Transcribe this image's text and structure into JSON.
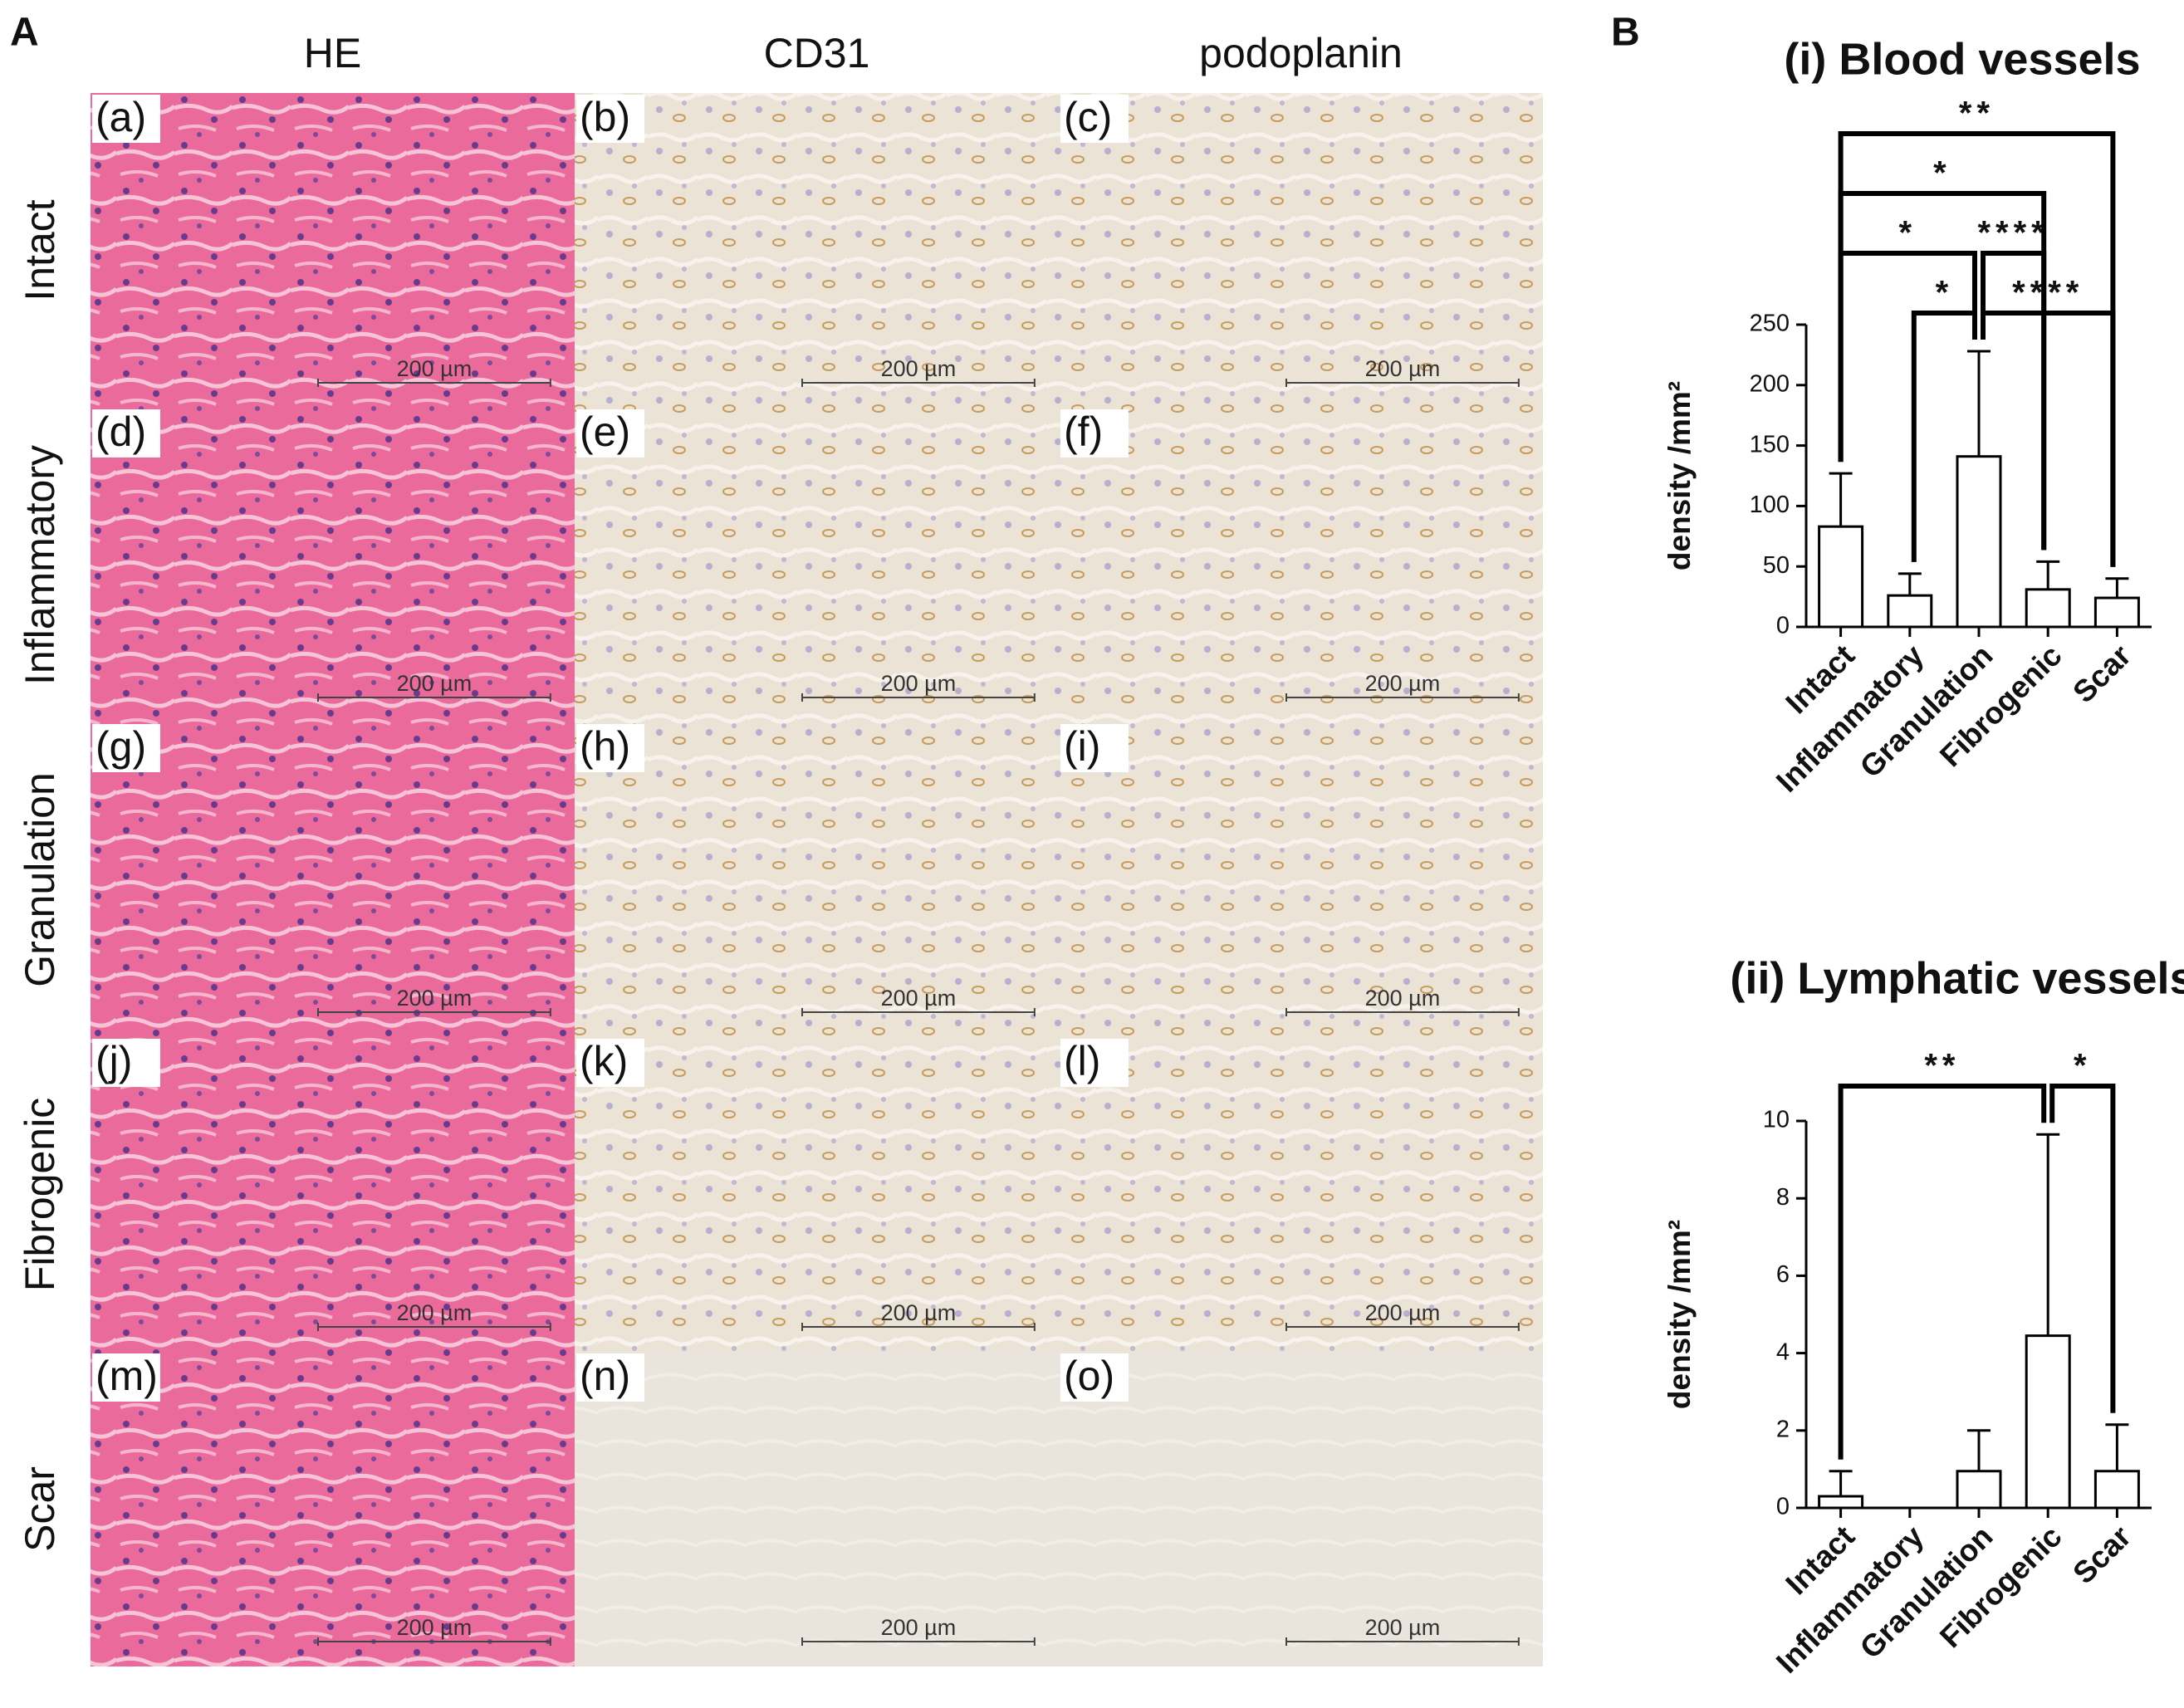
{
  "panel_a": {
    "label": "A",
    "columns": [
      "HE",
      "CD31",
      "podoplanin"
    ],
    "rows": [
      "Intact",
      "Inflammatory",
      "Granulation",
      "Fibrogenic",
      "Scar"
    ],
    "panels": [
      "(a)",
      "(b)",
      "(c)",
      "(d)",
      "(e)",
      "(f)",
      "(g)",
      "(h)",
      "(i)",
      "(j)",
      "(k)",
      "(l)",
      "(m)",
      "(n)",
      "(o)"
    ],
    "scale_bars": [
      "200 µm",
      "200 µm",
      "200 µm",
      "200 µm",
      "200 µm",
      "200 µm",
      "200 µm",
      "200 µm",
      "200 µm",
      "200 µm",
      "200 µm",
      "200 µm",
      "200 µm",
      "200 µm",
      "200 µm"
    ]
  },
  "panel_b_label": "B",
  "chart_data": [
    {
      "type": "bar",
      "title": "(i) Blood vessels",
      "ylabel": "density /mm²",
      "categories": [
        "Intact",
        "Inflammatory",
        "Granulation",
        "Fibrogenic",
        "Scar"
      ],
      "values": [
        83,
        26,
        141,
        31,
        24
      ],
      "errors": [
        44,
        18,
        87,
        23,
        16
      ],
      "color": "#ffffff",
      "edgecolor": "#000000",
      "ylim": [
        0,
        250
      ],
      "yticks": [
        0,
        50,
        100,
        150,
        200,
        250
      ],
      "significance": [
        {
          "from": "Inflammatory",
          "to": "Granulation",
          "label": "*"
        },
        {
          "from": "Granulation",
          "to": "Scar",
          "label": "****"
        },
        {
          "from": "Intact",
          "to": "Granulation",
          "label": "*"
        },
        {
          "from": "Granulation",
          "to": "Fibrogenic",
          "label": "****"
        },
        {
          "from": "Intact",
          "to": "Fibrogenic",
          "label": "*"
        },
        {
          "from": "Intact",
          "to": "Scar",
          "label": "**"
        }
      ]
    },
    {
      "type": "bar",
      "title": "(ii) Lymphatic vessels",
      "ylabel": "density /mm²",
      "categories": [
        "Intact",
        "Inflammatory",
        "Granulation",
        "Fibrogenic",
        "Scar"
      ],
      "values": [
        0.3,
        0,
        0.95,
        4.45,
        0.95
      ],
      "errors": [
        0.65,
        0,
        1.05,
        5.2,
        1.2
      ],
      "color": "#ffffff",
      "edgecolor": "#000000",
      "ylim": [
        0,
        10
      ],
      "yticks": [
        0,
        2,
        4,
        6,
        8,
        10
      ],
      "significance": [
        {
          "from": "Intact",
          "to": "Fibrogenic",
          "label": "**"
        },
        {
          "from": "Fibrogenic",
          "to": "Scar",
          "label": "*"
        }
      ]
    }
  ]
}
